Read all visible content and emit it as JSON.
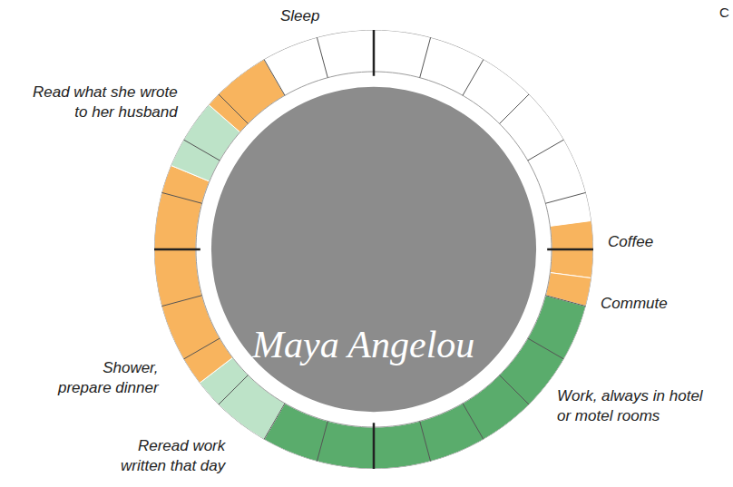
{
  "chart_data": {
    "type": "clock",
    "segments": [
      {
        "label": "Sleep",
        "start": 22,
        "end": 5.5,
        "color": "#ffffff"
      },
      {
        "label": "Coffee",
        "start": 5.5,
        "end": 6.5,
        "color": "#f8b45e"
      },
      {
        "label": "Commute",
        "start": 6.5,
        "end": 7,
        "color": "#f8b45e"
      },
      {
        "label": "Work, always in hotel\nor motel rooms",
        "start": 7,
        "end": 14,
        "color": "#5aac6c"
      },
      {
        "label": "Reread work\nwritten that day",
        "start": 14,
        "end": 15.5,
        "color": "#bde3c8"
      },
      {
        "label": "Shower,\nprepare dinner",
        "start": 15.5,
        "end": 19.5,
        "color": "#f8b45e"
      },
      {
        "label": "Read what she wrote\nto her husband",
        "start": 19.5,
        "end": 20.75,
        "color": "#bde3c8"
      },
      {
        "start": 20.75,
        "end": 22,
        "color": "#f8b45e"
      }
    ],
    "ticks": [
      0,
      1,
      2,
      3,
      4,
      5,
      6,
      7,
      8,
      9,
      10,
      11,
      12,
      13,
      14,
      15,
      16,
      17,
      18,
      19,
      20,
      21,
      22,
      23
    ],
    "major_ticks": [
      0,
      6,
      12,
      18
    ],
    "tick_labels": false,
    "signature": "Maya Angelou",
    "corner_text": "C"
  }
}
